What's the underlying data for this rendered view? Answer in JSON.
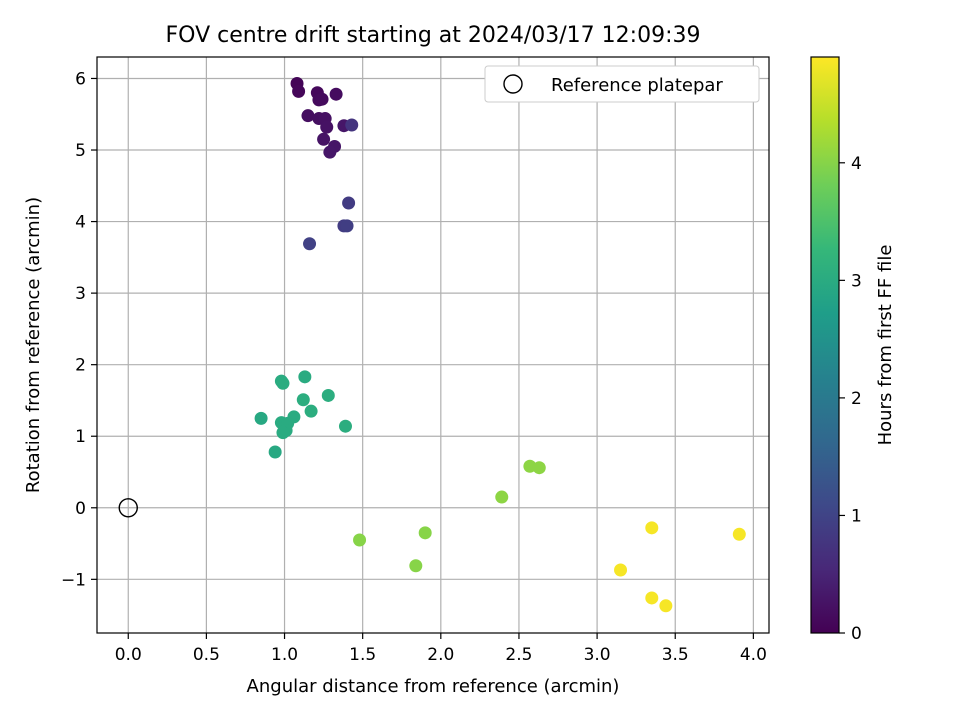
{
  "chart_data": {
    "type": "scatter",
    "title": "FOV centre drift starting at 2024/03/17 12:09:39",
    "xlabel": "Angular distance from reference (arcmin)",
    "ylabel": "Rotation from reference (arcmin)",
    "xlim": [
      -0.2,
      4.1
    ],
    "ylim": [
      -1.75,
      6.3
    ],
    "x_ticks": [
      0.0,
      0.5,
      1.0,
      1.5,
      2.0,
      2.5,
      3.0,
      3.5,
      4.0
    ],
    "x_tick_labels": [
      "0.0",
      "0.5",
      "1.0",
      "1.5",
      "2.0",
      "2.5",
      "3.0",
      "3.5",
      "4.0"
    ],
    "y_ticks": [
      -1,
      0,
      1,
      2,
      3,
      4,
      5,
      6
    ],
    "y_tick_labels": [
      "−1",
      "0",
      "1",
      "2",
      "3",
      "4",
      "5",
      "6"
    ],
    "grid": true,
    "legend": {
      "placement": "top-right",
      "entries": [
        {
          "label": "Reference platepar",
          "marker": "open-circle"
        }
      ]
    },
    "colorbar": {
      "label": "Hours from first FF file",
      "range": [
        0,
        4.9
      ],
      "ticks": [
        0,
        1,
        2,
        3,
        4
      ],
      "tick_labels": [
        "0",
        "1",
        "2",
        "3",
        "4"
      ],
      "colormap": "viridis",
      "stops": [
        "#440154",
        "#482878",
        "#3e4989",
        "#31688e",
        "#26828e",
        "#1f9e89",
        "#35b779",
        "#6ece58",
        "#b5de2b",
        "#fde725"
      ]
    },
    "reference": {
      "x": 0.0,
      "y": 0.0,
      "color": "#000000"
    },
    "points": [
      {
        "x": 1.08,
        "y": 5.93,
        "hours": 0.05
      },
      {
        "x": 1.09,
        "y": 5.82,
        "hours": 0.08
      },
      {
        "x": 1.21,
        "y": 5.8,
        "hours": 0.1
      },
      {
        "x": 1.22,
        "y": 5.7,
        "hours": 0.12
      },
      {
        "x": 1.24,
        "y": 5.71,
        "hours": 0.14
      },
      {
        "x": 1.33,
        "y": 5.78,
        "hours": 0.16
      },
      {
        "x": 1.15,
        "y": 5.48,
        "hours": 0.18
      },
      {
        "x": 1.22,
        "y": 5.44,
        "hours": 0.2
      },
      {
        "x": 1.26,
        "y": 5.44,
        "hours": 0.22
      },
      {
        "x": 1.27,
        "y": 5.32,
        "hours": 0.24
      },
      {
        "x": 1.38,
        "y": 5.34,
        "hours": 0.3
      },
      {
        "x": 1.25,
        "y": 5.15,
        "hours": 0.26
      },
      {
        "x": 1.32,
        "y": 5.05,
        "hours": 0.28
      },
      {
        "x": 1.29,
        "y": 4.97,
        "hours": 0.3
      },
      {
        "x": 1.43,
        "y": 5.35,
        "hours": 0.75
      },
      {
        "x": 1.41,
        "y": 4.26,
        "hours": 0.85
      },
      {
        "x": 1.38,
        "y": 3.94,
        "hours": 0.88
      },
      {
        "x": 1.4,
        "y": 3.94,
        "hours": 0.9
      },
      {
        "x": 1.16,
        "y": 3.69,
        "hours": 0.95
      },
      {
        "x": 1.13,
        "y": 1.83,
        "hours": 3.0
      },
      {
        "x": 0.98,
        "y": 1.77,
        "hours": 3.0
      },
      {
        "x": 0.99,
        "y": 1.74,
        "hours": 3.02
      },
      {
        "x": 1.28,
        "y": 1.57,
        "hours": 3.05
      },
      {
        "x": 1.12,
        "y": 1.51,
        "hours": 3.05
      },
      {
        "x": 1.17,
        "y": 1.35,
        "hours": 3.05
      },
      {
        "x": 1.06,
        "y": 1.27,
        "hours": 3.0
      },
      {
        "x": 0.85,
        "y": 1.25,
        "hours": 2.95
      },
      {
        "x": 0.98,
        "y": 1.19,
        "hours": 3.0
      },
      {
        "x": 1.02,
        "y": 1.18,
        "hours": 3.0
      },
      {
        "x": 1.39,
        "y": 1.14,
        "hours": 3.05
      },
      {
        "x": 1.01,
        "y": 1.08,
        "hours": 3.0
      },
      {
        "x": 0.99,
        "y": 1.05,
        "hours": 3.0
      },
      {
        "x": 0.94,
        "y": 0.78,
        "hours": 2.95
      },
      {
        "x": 1.48,
        "y": -0.45,
        "hours": 4.0
      },
      {
        "x": 1.9,
        "y": -0.35,
        "hours": 4.0
      },
      {
        "x": 1.84,
        "y": -0.81,
        "hours": 4.0
      },
      {
        "x": 2.39,
        "y": 0.15,
        "hours": 4.05
      },
      {
        "x": 2.57,
        "y": 0.58,
        "hours": 4.05
      },
      {
        "x": 2.63,
        "y": 0.56,
        "hours": 4.05
      },
      {
        "x": 3.35,
        "y": -0.28,
        "hours": 4.85
      },
      {
        "x": 3.91,
        "y": -0.37,
        "hours": 4.85
      },
      {
        "x": 3.15,
        "y": -0.87,
        "hours": 4.85
      },
      {
        "x": 3.35,
        "y": -1.26,
        "hours": 4.85
      },
      {
        "x": 3.44,
        "y": -1.37,
        "hours": 4.85
      }
    ]
  }
}
